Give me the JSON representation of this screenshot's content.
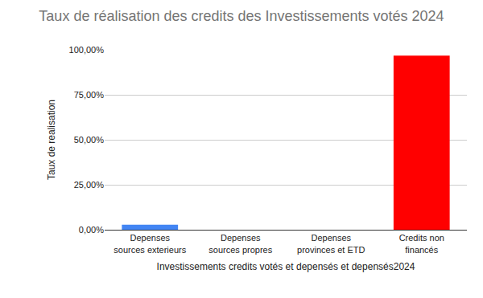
{
  "chart_data": {
    "type": "bar",
    "title": "Taux de réalisation des credits des Investissements votés 2024",
    "x_label": "Investissements credits votés et depensés et depensés2024",
    "y_label": "Taux de realisation",
    "categories": [
      "Depenses\nsources exterieurs",
      "Depenses\nsources propres",
      "Depenses\nprovinces et ETD",
      "Credits non\nfinancés"
    ],
    "values": [
      2.8,
      0,
      0,
      96.8
    ],
    "colors": [
      "#4285f4",
      "#4285f4",
      "#4285f4",
      "#ff0000"
    ],
    "ylim": [
      0,
      100
    ],
    "yticks": [
      {
        "value": 0,
        "label": "0,00%"
      },
      {
        "value": 25,
        "label": "25,00%"
      },
      {
        "value": 50,
        "label": "50,00%"
      },
      {
        "value": 75,
        "label": "75,00%"
      },
      {
        "value": 100,
        "label": "100,00%"
      }
    ],
    "grid": true
  }
}
